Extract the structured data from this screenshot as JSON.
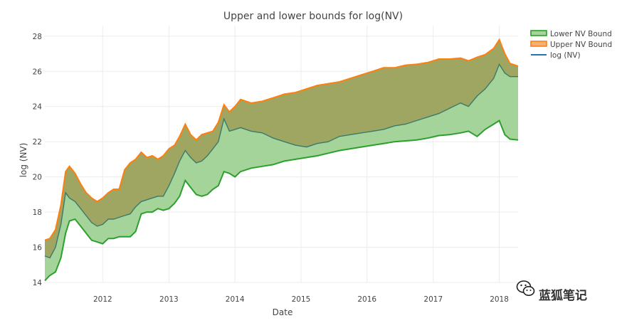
{
  "chart_data": {
    "type": "area",
    "title": "Upper and lower bounds for log(NV)",
    "xlabel": "Date",
    "ylabel": "log (NV)",
    "xlim": [
      "2011-02-15",
      "2018-04-15"
    ],
    "ylim": [
      14,
      28.6
    ],
    "x_ticks": [
      "2012",
      "2013",
      "2014",
      "2015",
      "2016",
      "2017",
      "2018"
    ],
    "y_ticks": [
      14,
      16,
      18,
      20,
      22,
      24,
      26,
      28
    ],
    "grid": true,
    "legend_position": "top-right",
    "fill": "lower-to-upper",
    "series": [
      {
        "name": "Lower NV Bound",
        "color": "#2ca02c",
        "x": [
          "2011-02-15",
          "2011-03-15",
          "2011-04-15",
          "2011-05-15",
          "2011-06-10",
          "2011-07-01",
          "2011-08-01",
          "2011-09-01",
          "2011-10-01",
          "2011-11-01",
          "2011-12-01",
          "2012-01-01",
          "2012-02-01",
          "2012-03-01",
          "2012-04-01",
          "2012-05-01",
          "2012-06-01",
          "2012-07-01",
          "2012-08-01",
          "2012-09-01",
          "2012-10-01",
          "2012-11-01",
          "2012-12-01",
          "2013-01-01",
          "2013-02-01",
          "2013-03-01",
          "2013-04-01",
          "2013-05-01",
          "2013-06-01",
          "2013-07-01",
          "2013-08-01",
          "2013-09-01",
          "2013-10-01",
          "2013-11-01",
          "2013-12-01",
          "2014-01-01",
          "2014-02-01",
          "2014-04-01",
          "2014-06-01",
          "2014-08-01",
          "2014-10-01",
          "2014-12-01",
          "2015-02-01",
          "2015-04-01",
          "2015-06-01",
          "2015-08-01",
          "2015-10-01",
          "2015-12-01",
          "2016-02-01",
          "2016-04-01",
          "2016-06-01",
          "2016-08-01",
          "2016-10-01",
          "2016-12-01",
          "2017-02-01",
          "2017-04-01",
          "2017-06-01",
          "2017-07-15",
          "2017-09-01",
          "2017-10-15",
          "2017-12-01",
          "2018-01-01",
          "2018-02-01",
          "2018-03-01",
          "2018-04-15"
        ],
        "values": [
          14.1,
          14.4,
          14.6,
          15.4,
          16.8,
          17.5,
          17.6,
          17.2,
          16.8,
          16.4,
          16.3,
          16.2,
          16.5,
          16.5,
          16.6,
          16.6,
          16.6,
          16.9,
          17.9,
          18.0,
          18.0,
          18.2,
          18.1,
          18.2,
          18.5,
          18.9,
          19.8,
          19.4,
          19.0,
          18.9,
          19.0,
          19.3,
          19.5,
          20.3,
          20.2,
          20.0,
          20.3,
          20.5,
          20.6,
          20.7,
          20.9,
          21.0,
          21.1,
          21.2,
          21.35,
          21.5,
          21.6,
          21.7,
          21.8,
          21.9,
          22.0,
          22.05,
          22.1,
          22.2,
          22.35,
          22.4,
          22.5,
          22.6,
          22.3,
          22.7,
          23.0,
          23.2,
          22.4,
          22.15,
          22.1
        ]
      },
      {
        "name": "Upper NV Bound",
        "color": "#ff7f0e",
        "x": [
          "2011-02-15",
          "2011-03-15",
          "2011-04-15",
          "2011-05-15",
          "2011-06-10",
          "2011-07-01",
          "2011-08-01",
          "2011-09-01",
          "2011-10-01",
          "2011-11-01",
          "2011-12-01",
          "2012-01-01",
          "2012-02-01",
          "2012-03-01",
          "2012-04-01",
          "2012-05-01",
          "2012-06-01",
          "2012-07-01",
          "2012-08-01",
          "2012-09-01",
          "2012-10-01",
          "2012-11-01",
          "2012-12-01",
          "2013-01-01",
          "2013-02-01",
          "2013-03-01",
          "2013-04-01",
          "2013-05-01",
          "2013-06-01",
          "2013-07-01",
          "2013-08-01",
          "2013-09-01",
          "2013-10-01",
          "2013-11-01",
          "2013-12-01",
          "2014-01-01",
          "2014-02-01",
          "2014-04-01",
          "2014-06-01",
          "2014-08-01",
          "2014-10-01",
          "2014-12-01",
          "2015-02-01",
          "2015-04-01",
          "2015-06-01",
          "2015-08-01",
          "2015-10-01",
          "2015-12-01",
          "2016-02-01",
          "2016-04-01",
          "2016-06-01",
          "2016-08-01",
          "2016-10-01",
          "2016-12-01",
          "2017-02-01",
          "2017-04-01",
          "2017-06-01",
          "2017-07-15",
          "2017-09-01",
          "2017-10-15",
          "2017-12-01",
          "2018-01-01",
          "2018-02-01",
          "2018-03-01",
          "2018-04-15"
        ],
        "values": [
          16.4,
          16.5,
          17.0,
          18.4,
          20.3,
          20.6,
          20.2,
          19.6,
          19.1,
          18.8,
          18.6,
          18.8,
          19.1,
          19.3,
          19.3,
          20.4,
          20.8,
          21.0,
          21.4,
          21.1,
          21.2,
          21.0,
          21.2,
          21.6,
          21.8,
          22.3,
          23.0,
          22.4,
          22.1,
          22.4,
          22.5,
          22.6,
          23.1,
          24.1,
          23.7,
          24.0,
          24.4,
          24.2,
          24.3,
          24.5,
          24.7,
          24.8,
          25.0,
          25.2,
          25.3,
          25.4,
          25.6,
          25.8,
          26.0,
          26.2,
          26.2,
          26.35,
          26.4,
          26.5,
          26.7,
          26.7,
          26.75,
          26.6,
          26.8,
          26.95,
          27.3,
          27.8,
          27.0,
          26.45,
          26.3
        ]
      },
      {
        "name": "log (NV)",
        "color": "#1f77b4",
        "x": [
          "2011-02-15",
          "2011-03-15",
          "2011-04-15",
          "2011-05-15",
          "2011-06-10",
          "2011-07-01",
          "2011-08-01",
          "2011-09-01",
          "2011-10-01",
          "2011-11-01",
          "2011-12-01",
          "2012-01-01",
          "2012-02-01",
          "2012-03-01",
          "2012-04-01",
          "2012-05-01",
          "2012-06-01",
          "2012-07-01",
          "2012-08-01",
          "2012-09-01",
          "2012-10-01",
          "2012-11-01",
          "2012-12-01",
          "2013-01-01",
          "2013-02-01",
          "2013-03-01",
          "2013-04-01",
          "2013-05-01",
          "2013-06-01",
          "2013-07-01",
          "2013-08-01",
          "2013-09-01",
          "2013-10-01",
          "2013-11-01",
          "2013-12-01",
          "2014-01-01",
          "2014-02-01",
          "2014-04-01",
          "2014-06-01",
          "2014-08-01",
          "2014-10-01",
          "2014-12-01",
          "2015-02-01",
          "2015-04-01",
          "2015-06-01",
          "2015-08-01",
          "2015-10-01",
          "2015-12-01",
          "2016-02-01",
          "2016-04-01",
          "2016-06-01",
          "2016-08-01",
          "2016-10-01",
          "2016-12-01",
          "2017-02-01",
          "2017-04-01",
          "2017-06-01",
          "2017-07-15",
          "2017-09-01",
          "2017-10-15",
          "2017-12-01",
          "2018-01-01",
          "2018-02-01",
          "2018-03-01",
          "2018-04-15"
        ],
        "values": [
          15.5,
          15.4,
          16.0,
          17.3,
          19.1,
          18.8,
          18.6,
          18.2,
          17.8,
          17.4,
          17.2,
          17.3,
          17.6,
          17.6,
          17.7,
          17.8,
          17.9,
          18.3,
          18.6,
          18.7,
          18.8,
          18.9,
          18.9,
          19.5,
          20.2,
          20.9,
          21.5,
          21.1,
          20.8,
          20.9,
          21.2,
          21.6,
          22.0,
          23.3,
          22.6,
          22.7,
          22.8,
          22.6,
          22.5,
          22.2,
          22.0,
          21.8,
          21.7,
          21.9,
          22.0,
          22.3,
          22.4,
          22.5,
          22.6,
          22.7,
          22.9,
          23.0,
          23.2,
          23.4,
          23.6,
          23.9,
          24.2,
          24.0,
          24.6,
          25.0,
          25.6,
          26.4,
          25.9,
          25.7,
          25.7
        ]
      }
    ]
  },
  "watermark": {
    "text": "蓝狐笔记",
    "icon": "wechat-icon"
  }
}
